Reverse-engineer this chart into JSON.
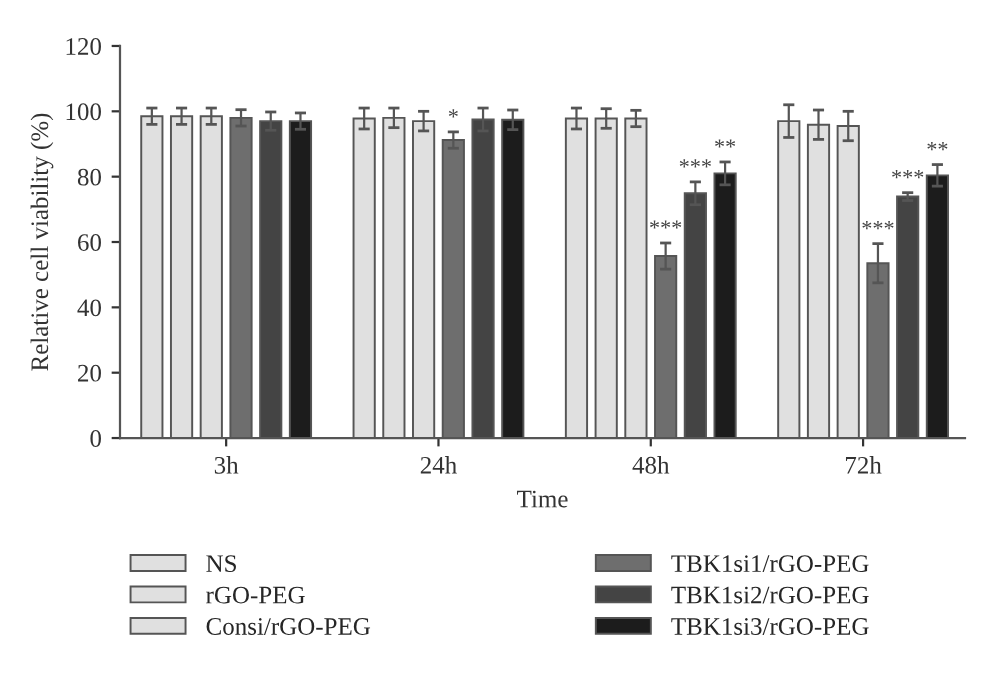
{
  "chart_data": {
    "type": "bar",
    "xlabel": "Time",
    "ylabel": "Relative cell viability (%)",
    "categories": [
      "3h",
      "24h",
      "48h",
      "72h"
    ],
    "series": [
      {
        "name": "NS",
        "color": "#e0e0e0",
        "values": [
          98.5,
          97.8,
          97.8,
          97
        ],
        "errors": [
          2.5,
          3.2,
          3.2,
          5
        ]
      },
      {
        "name": "rGO-PEG",
        "color": "#e0e0e0",
        "values": [
          98.5,
          98,
          97.8,
          95.9
        ],
        "errors": [
          2.5,
          3,
          3,
          4.5
        ]
      },
      {
        "name": "Consi/rGO-PEG",
        "color": "#e0e0e0",
        "values": [
          98.5,
          97,
          97.8,
          95.5
        ],
        "errors": [
          2.5,
          3,
          2.5,
          4.5
        ]
      },
      {
        "name": "TBK1si1/rGO-PEG",
        "color": "#6e6e6e",
        "values": [
          98,
          91.2,
          55.7,
          53.5
        ],
        "errors": [
          2.5,
          2.5,
          4,
          6
        ],
        "value_labels": [
          null,
          "*",
          "***",
          "***"
        ]
      },
      {
        "name": "TBK1si2/rGO-PEG",
        "color": "#444444",
        "values": [
          97,
          97.5,
          74.9,
          73.9
        ],
        "errors": [
          2.8,
          3.5,
          3.5,
          1.2
        ],
        "value_labels": [
          null,
          null,
          "***",
          "***"
        ]
      },
      {
        "name": "TBK1si3/rGO-PEG",
        "color": "#1c1c1c",
        "values": [
          97,
          97.4,
          81,
          80.4
        ],
        "errors": [
          2.5,
          3,
          3.5,
          3.3
        ],
        "value_labels": [
          null,
          null,
          "**",
          "**"
        ]
      }
    ],
    "ylim": [
      0,
      120
    ],
    "yticks": [
      0,
      20,
      40,
      60,
      80,
      100,
      120
    ],
    "grid": false,
    "legend": "bottom"
  }
}
